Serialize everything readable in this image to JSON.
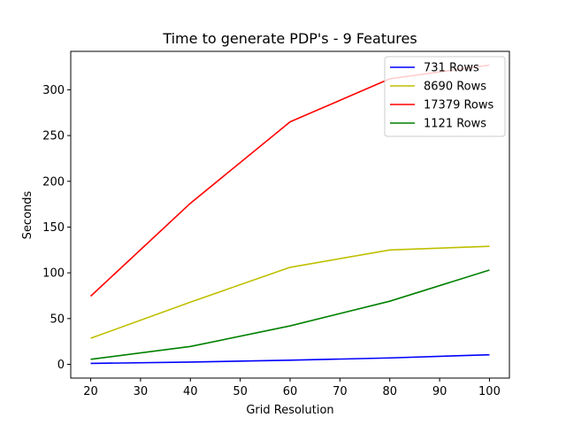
{
  "chart_data": {
    "type": "line",
    "title": "Time to generate PDP's - 9 Features",
    "xlabel": "Grid Resolution",
    "ylabel": "Seconds",
    "x": [
      20,
      40,
      60,
      80,
      100
    ],
    "xlim": [
      16,
      104
    ],
    "ylim": [
      -15,
      342
    ],
    "xticks": [
      20,
      30,
      40,
      50,
      60,
      70,
      80,
      90,
      100
    ],
    "yticks": [
      0,
      50,
      100,
      150,
      200,
      250,
      300
    ],
    "grid": false,
    "legend_position": "top-right",
    "series": [
      {
        "name": "731 Rows",
        "color": "#0000ff",
        "values": [
          1,
          2.5,
          4.5,
          7,
          10.5
        ]
      },
      {
        "name": "8690 Rows",
        "color": "#bfbf00",
        "values": [
          28.5,
          68,
          106,
          125,
          129
        ]
      },
      {
        "name": "17379 Rows",
        "color": "#ff0000",
        "values": [
          74.5,
          176,
          265,
          312,
          327
        ]
      },
      {
        "name": "1121 Rows",
        "color": "#008000",
        "values": [
          5.5,
          19.5,
          42,
          69,
          103
        ]
      }
    ]
  }
}
